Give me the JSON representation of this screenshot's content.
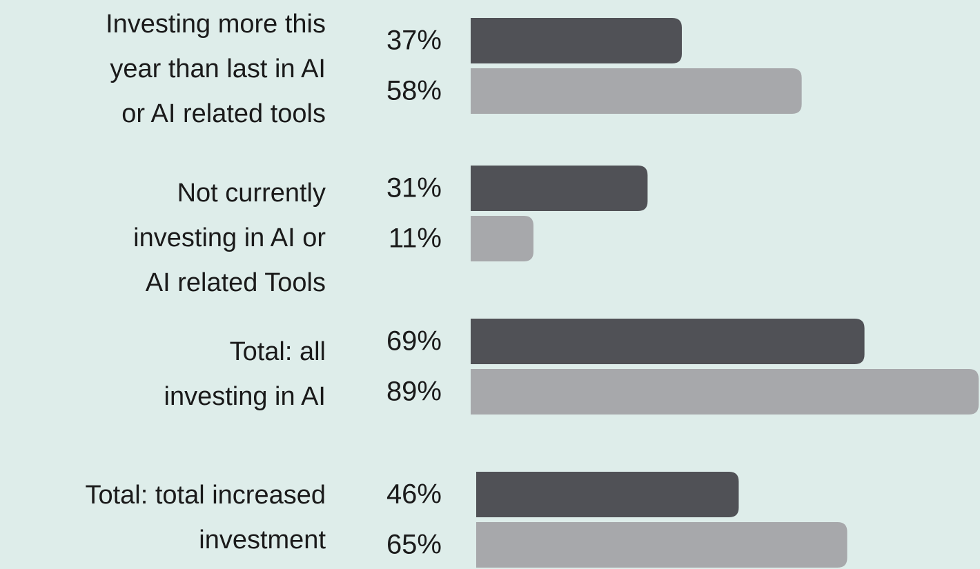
{
  "chart_data": {
    "type": "bar",
    "orientation": "horizontal",
    "categories": [
      "Investing more this\nyear than last  in AI\nor AI related tools",
      "Not currently\ninvesting in AI or\nAI related Tools",
      "Total: all\ninvesting in AI",
      "Total: total increased\ninvestment"
    ],
    "series": [
      {
        "color": "#505156",
        "values": [
          37,
          31,
          69,
          46
        ],
        "value_labels": [
          "37%",
          "31%",
          "69%",
          "46%"
        ]
      },
      {
        "color": "#a7a8ab",
        "values": [
          58,
          11,
          89,
          65
        ],
        "value_labels": [
          "58%",
          "11%",
          "89%",
          "65%"
        ]
      }
    ]
  }
}
